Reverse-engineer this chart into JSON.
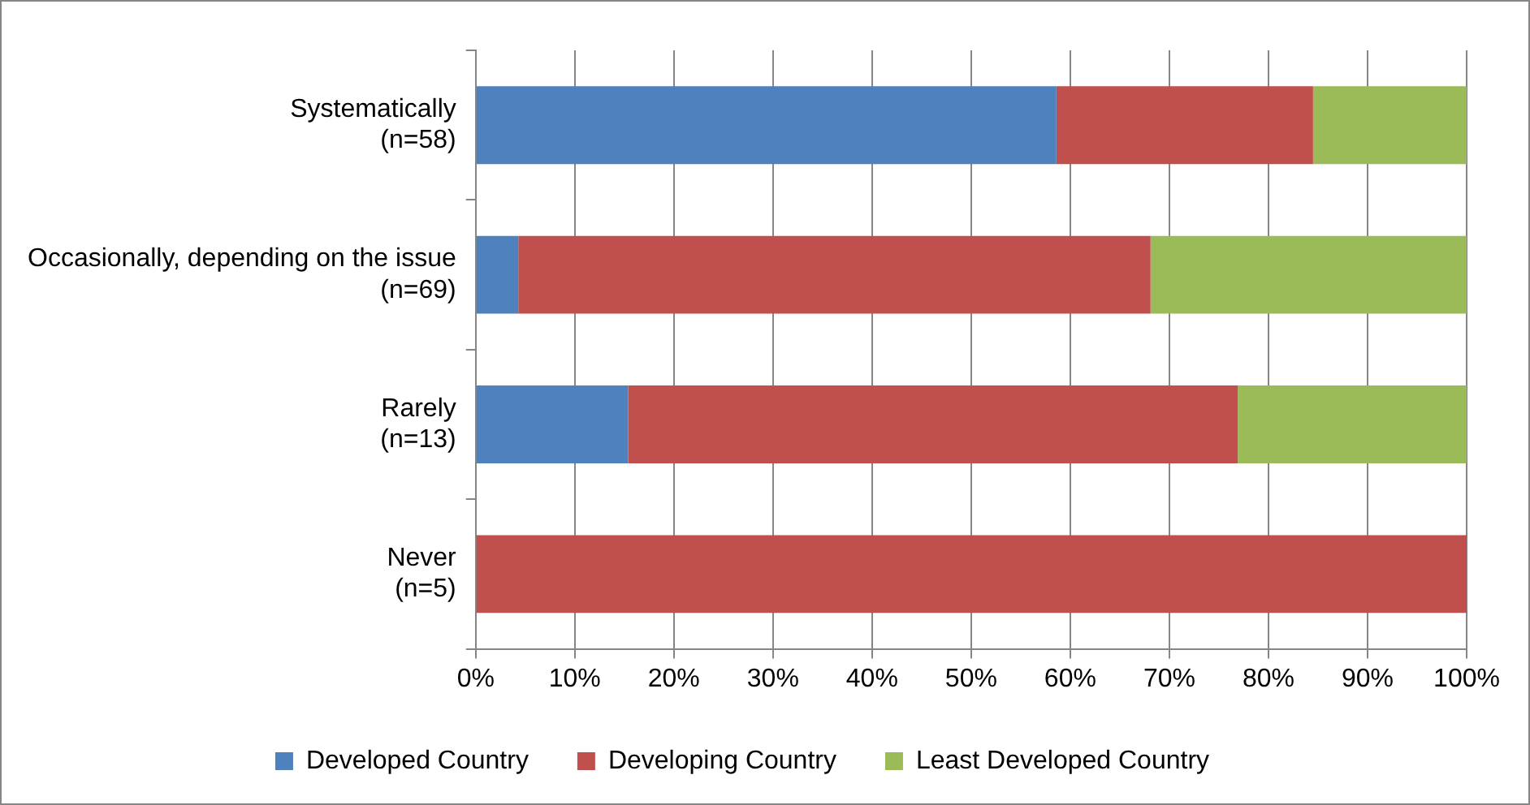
{
  "chart_data": {
    "type": "bar",
    "orientation": "horizontal",
    "stacked": true,
    "categories": [
      "Systematically\n(n=58)",
      "Occasionally, depending on the issue\n(n=69)",
      "Rarely\n(n=13)",
      "Never\n(n=5)"
    ],
    "series": [
      {
        "name": "Developed Country",
        "color": "#4f81bd",
        "values": [
          58.6,
          4.3,
          15.4,
          0
        ]
      },
      {
        "name": "Developing Country",
        "color": "#c0504d",
        "values": [
          25.9,
          63.8,
          61.5,
          100
        ]
      },
      {
        "name": "Least Developed Country",
        "color": "#9bbb59",
        "values": [
          15.5,
          31.9,
          23.1,
          0
        ]
      }
    ],
    "xlim": [
      0,
      100
    ],
    "xticks": [
      {
        "value": 0,
        "label": "0%"
      },
      {
        "value": 10,
        "label": "10%"
      },
      {
        "value": 20,
        "label": "20%"
      },
      {
        "value": 30,
        "label": "30%"
      },
      {
        "value": 40,
        "label": "40%"
      },
      {
        "value": 50,
        "label": "50%"
      },
      {
        "value": 60,
        "label": "60%"
      },
      {
        "value": 70,
        "label": "70%"
      },
      {
        "value": 80,
        "label": "80%"
      },
      {
        "value": 90,
        "label": "90%"
      },
      {
        "value": 100,
        "label": "100%"
      }
    ],
    "grid": "x",
    "legend": "bottom"
  }
}
